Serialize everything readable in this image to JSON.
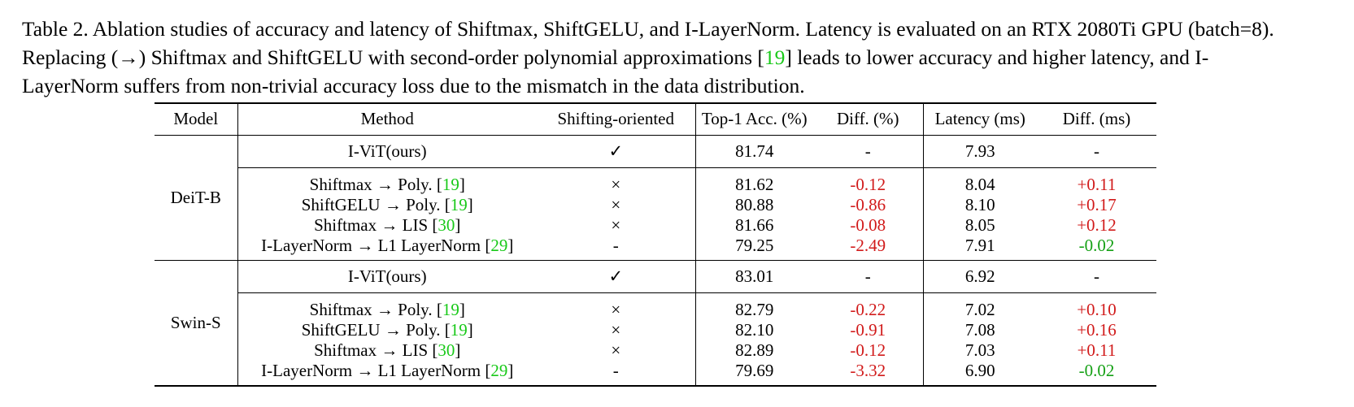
{
  "caption": {
    "prefix": "Table 2. Ablation studies of accuracy and latency of Shiftmax, ShiftGELU, and I-LayerNorm.  Latency is evaluated on an RTX 2080Ti GPU (batch=8). Replacing (→) Shiftmax and ShiftGELU with second-order polynomial approximations [",
    "cite": "19",
    "suffix": "] leads to lower accuracy and higher latency, and I-LayerNorm suffers from non-trivial accuracy loss due to the mismatch in the data distribution."
  },
  "headers": {
    "model": "Model",
    "method": "Method",
    "shifting": "Shifting-oriented",
    "top1": "Top-1 Acc. (%)",
    "diff_acc": "Diff. (%)",
    "latency": "Latency (ms)",
    "diff_ms": "Diff. (ms)"
  },
  "groups": [
    {
      "model": "DeiT-B",
      "main": {
        "method": "I-ViT(ours)",
        "shifting": "✓",
        "top1": "81.74",
        "diff_acc": "-",
        "latency": "7.93",
        "diff_ms": "-"
      },
      "rows": [
        {
          "method_pre": "Shiftmax → Poly. [",
          "cite": "19",
          "method_post": "]",
          "shifting": "×",
          "top1": "81.62",
          "diff_acc": "-0.12",
          "latency": "8.04",
          "diff_ms": "+0.11"
        },
        {
          "method_pre": "ShiftGELU → Poly. [",
          "cite": "19",
          "method_post": "]",
          "shifting": "×",
          "top1": "80.88",
          "diff_acc": "-0.86",
          "latency": "8.10",
          "diff_ms": "+0.17"
        },
        {
          "method_pre": "Shiftmax → LIS [",
          "cite": "30",
          "method_post": "]",
          "shifting": "×",
          "top1": "81.66",
          "diff_acc": "-0.08",
          "latency": "8.05",
          "diff_ms": "+0.12"
        },
        {
          "method_pre": "I-LayerNorm → L1 LayerNorm [",
          "cite": "29",
          "method_post": "]",
          "shifting": "-",
          "top1": "79.25",
          "diff_acc": "-2.49",
          "latency": "7.91",
          "diff_ms": "-0.02"
        }
      ]
    },
    {
      "model": "Swin-S",
      "main": {
        "method": "I-ViT(ours)",
        "shifting": "✓",
        "top1": "83.01",
        "diff_acc": "-",
        "latency": "6.92",
        "diff_ms": "-"
      },
      "rows": [
        {
          "method_pre": "Shiftmax → Poly. [",
          "cite": "19",
          "method_post": "]",
          "shifting": "×",
          "top1": "82.79",
          "diff_acc": "-0.22",
          "latency": "7.02",
          "diff_ms": "+0.10"
        },
        {
          "method_pre": "ShiftGELU → Poly. [",
          "cite": "19",
          "method_post": "]",
          "shifting": "×",
          "top1": "82.10",
          "diff_acc": "-0.91",
          "latency": "7.08",
          "diff_ms": "+0.16"
        },
        {
          "method_pre": "Shiftmax → LIS [",
          "cite": "30",
          "method_post": "]",
          "shifting": "×",
          "top1": "82.89",
          "diff_acc": "-0.12",
          "latency": "7.03",
          "diff_ms": "+0.11"
        },
        {
          "method_pre": "I-LayerNorm → L1 LayerNorm [",
          "cite": "29",
          "method_post": "]",
          "shifting": "-",
          "top1": "79.69",
          "diff_acc": "-3.32",
          "latency": "6.90",
          "diff_ms": "-0.02"
        }
      ]
    }
  ],
  "colors": {
    "citation": "#19c919",
    "increase": "#d11a1a",
    "decrease": "#14a014"
  }
}
